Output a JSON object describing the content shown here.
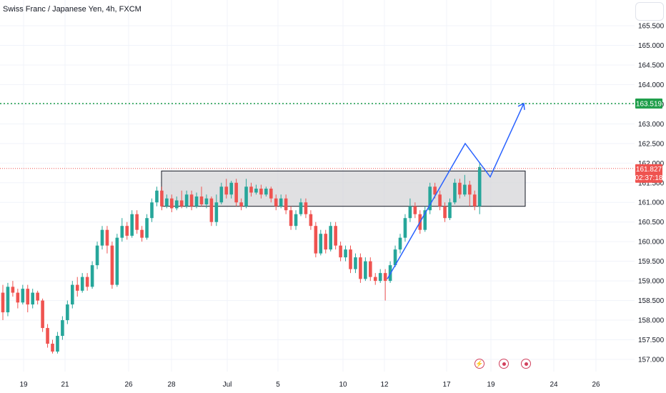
{
  "header": {
    "title": "Swiss Franc / Japanese Yen, 4h, FXCM"
  },
  "chart_data": {
    "type": "candlestick",
    "title": "Swiss Franc / Japanese Yen, 4h, FXCM",
    "ylim": [
      156.8,
      165.8
    ],
    "y_ticks": [
      "157.000",
      "157.500",
      "158.000",
      "158.500",
      "159.000",
      "159.500",
      "160.000",
      "160.500",
      "161.000",
      "161.500",
      "162.000",
      "162.500",
      "163.000",
      "163.500",
      "164.000",
      "164.500",
      "165.000",
      "165.500"
    ],
    "x_labels": [
      "19",
      "21",
      "26",
      "28",
      "Jul",
      "5",
      "10",
      "12",
      "17",
      "19",
      "24",
      "26"
    ],
    "candles": [
      [
        158.7,
        158.2,
        158.9,
        158.0
      ],
      [
        158.2,
        158.85,
        158.95,
        158.1
      ],
      [
        158.85,
        158.7,
        159.0,
        158.6
      ],
      [
        158.7,
        158.45,
        158.8,
        158.3
      ],
      [
        158.45,
        158.8,
        158.9,
        158.4
      ],
      [
        158.8,
        158.4,
        158.9,
        158.2
      ],
      [
        158.4,
        158.7,
        158.8,
        158.3
      ],
      [
        158.7,
        158.5,
        158.75,
        158.4
      ],
      [
        158.5,
        157.8,
        158.55,
        157.7
      ],
      [
        157.8,
        157.4,
        157.9,
        157.3
      ],
      [
        157.4,
        157.2,
        157.5,
        157.15
      ],
      [
        157.2,
        157.6,
        157.7,
        157.15
      ],
      [
        157.6,
        158.0,
        158.1,
        157.5
      ],
      [
        158.0,
        158.4,
        158.5,
        157.9
      ],
      [
        158.4,
        158.9,
        159.0,
        158.3
      ],
      [
        158.9,
        158.75,
        159.1,
        158.6
      ],
      [
        158.75,
        159.1,
        159.2,
        158.7
      ],
      [
        159.1,
        158.85,
        159.2,
        158.75
      ],
      [
        158.85,
        159.4,
        159.5,
        158.8
      ],
      [
        159.4,
        159.9,
        160.0,
        159.3
      ],
      [
        159.9,
        160.3,
        160.4,
        159.8
      ],
      [
        160.3,
        159.9,
        160.4,
        159.7
      ],
      [
        159.9,
        158.9,
        160.0,
        158.8
      ],
      [
        158.9,
        160.1,
        160.2,
        158.85
      ],
      [
        160.1,
        160.4,
        160.6,
        160.0
      ],
      [
        160.4,
        160.15,
        160.5,
        160.05
      ],
      [
        160.15,
        160.7,
        160.8,
        160.1
      ],
      [
        160.7,
        160.3,
        160.8,
        160.2
      ],
      [
        160.3,
        160.1,
        160.4,
        160.0
      ],
      [
        160.1,
        160.6,
        160.7,
        160.05
      ],
      [
        160.6,
        161.0,
        161.1,
        160.5
      ],
      [
        161.0,
        161.3,
        161.4,
        160.9
      ],
      [
        161.3,
        160.9,
        161.4,
        160.8
      ],
      [
        160.9,
        161.1,
        161.2,
        160.85
      ],
      [
        161.1,
        160.85,
        161.2,
        160.75
      ],
      [
        160.85,
        161.05,
        161.15,
        160.8
      ],
      [
        161.05,
        160.9,
        161.3,
        160.85
      ],
      [
        160.9,
        161.2,
        161.3,
        160.85
      ],
      [
        161.2,
        160.9,
        161.3,
        160.8
      ],
      [
        160.9,
        161.15,
        161.25,
        160.85
      ],
      [
        161.15,
        160.95,
        161.4,
        160.9
      ],
      [
        160.95,
        161.1,
        161.2,
        160.85
      ],
      [
        161.1,
        160.5,
        161.15,
        160.4
      ],
      [
        160.5,
        161.0,
        161.2,
        160.4
      ],
      [
        161.0,
        161.4,
        161.5,
        160.95
      ],
      [
        161.4,
        161.2,
        161.6,
        161.1
      ],
      [
        161.2,
        161.5,
        161.55,
        161.1
      ],
      [
        161.5,
        161.0,
        161.6,
        160.9
      ],
      [
        161.0,
        160.9,
        161.1,
        160.8
      ],
      [
        160.9,
        161.4,
        161.6,
        160.85
      ],
      [
        161.4,
        161.25,
        161.5,
        161.15
      ],
      [
        161.25,
        161.35,
        161.45,
        161.2
      ],
      [
        161.35,
        161.2,
        161.45,
        161.1
      ],
      [
        161.2,
        161.35,
        161.4,
        161.15
      ],
      [
        161.35,
        161.1,
        161.4,
        161.0
      ],
      [
        161.1,
        160.9,
        161.2,
        160.8
      ],
      [
        160.9,
        161.1,
        161.2,
        160.85
      ],
      [
        161.1,
        160.8,
        161.2,
        160.7
      ],
      [
        160.8,
        160.4,
        160.9,
        160.3
      ],
      [
        160.4,
        160.7,
        160.8,
        160.3
      ],
      [
        160.7,
        161.0,
        161.1,
        160.65
      ],
      [
        161.0,
        160.7,
        161.1,
        160.6
      ],
      [
        160.7,
        160.4,
        160.8,
        160.3
      ],
      [
        160.4,
        159.7,
        160.5,
        159.6
      ],
      [
        159.7,
        160.2,
        160.3,
        159.65
      ],
      [
        160.2,
        159.8,
        160.3,
        159.7
      ],
      [
        159.8,
        160.4,
        160.5,
        159.75
      ],
      [
        160.4,
        159.9,
        160.5,
        159.8
      ],
      [
        159.9,
        159.6,
        160.0,
        159.5
      ],
      [
        159.6,
        159.8,
        159.9,
        159.5
      ],
      [
        159.8,
        159.3,
        159.9,
        159.2
      ],
      [
        159.3,
        159.6,
        159.7,
        159.2
      ],
      [
        159.6,
        159.05,
        159.7,
        158.95
      ],
      [
        159.05,
        159.5,
        159.6,
        159.0
      ],
      [
        159.5,
        159.1,
        159.6,
        159.0
      ],
      [
        159.1,
        159.0,
        159.2,
        158.9
      ],
      [
        159.0,
        159.2,
        159.3,
        158.95
      ],
      [
        159.2,
        159.0,
        159.3,
        158.5
      ],
      [
        159.0,
        159.4,
        159.5,
        158.95
      ],
      [
        159.4,
        159.8,
        159.9,
        159.35
      ],
      [
        159.8,
        160.1,
        160.2,
        159.7
      ],
      [
        160.1,
        160.6,
        160.7,
        160.0
      ],
      [
        160.6,
        160.9,
        161.1,
        160.5
      ],
      [
        160.9,
        160.7,
        161.0,
        160.6
      ],
      [
        160.7,
        160.3,
        160.8,
        160.2
      ],
      [
        160.3,
        160.8,
        160.9,
        160.25
      ],
      [
        160.8,
        161.4,
        161.5,
        160.7
      ],
      [
        161.4,
        161.2,
        161.5,
        161.1
      ],
      [
        161.2,
        160.9,
        161.3,
        160.8
      ],
      [
        160.9,
        160.6,
        161.0,
        160.5
      ],
      [
        160.6,
        161.0,
        161.1,
        160.55
      ],
      [
        161.0,
        161.5,
        161.6,
        160.95
      ],
      [
        161.5,
        161.2,
        161.6,
        161.1
      ],
      [
        161.2,
        161.45,
        161.7,
        161.15
      ],
      [
        161.45,
        161.2,
        161.55,
        160.9
      ],
      [
        161.2,
        160.9,
        161.3,
        160.8
      ],
      [
        160.9,
        161.9,
        162.0,
        160.7
      ]
    ],
    "current_price": "161.827",
    "countdown": "02:37:18",
    "target_level": "163.519",
    "resistance_zone": {
      "top": 161.8,
      "bottom": 160.9
    },
    "projection": [
      [
        159.0,
        162.5
      ],
      [
        161.3,
        163.519
      ]
    ]
  },
  "colors": {
    "up": "#26a69a",
    "down": "#ef5350",
    "projection": "#2962ff",
    "target": "#1e9e4a",
    "zone_fill": "#d6d6d8",
    "zone_stroke": "#131722"
  },
  "icons": {
    "event_1": "lightning-icon",
    "event_2": "target-dot-icon",
    "event_3": "target-dot-icon"
  }
}
